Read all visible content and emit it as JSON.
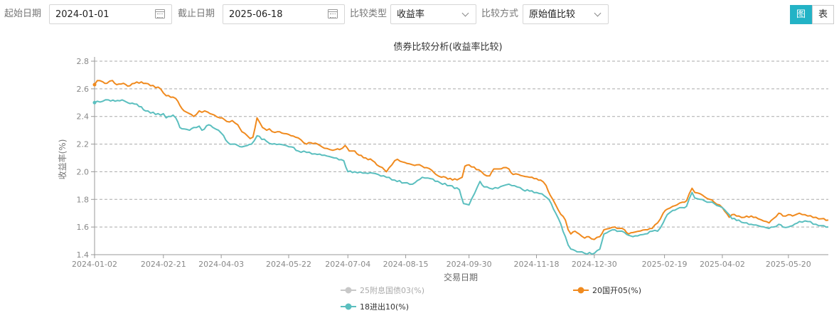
{
  "filters": {
    "start_label": "起始日期",
    "start_value": "2024-01-01",
    "end_label": "截止日期",
    "end_value": "2025-06-18",
    "type_label": "比较类型",
    "type_value": "收益率",
    "mode_label": "比较方式",
    "mode_value": "原始值比较"
  },
  "view_toggle": {
    "chart_label": "图",
    "table_label": "表",
    "active": "chart"
  },
  "colors": {
    "accent": "#22b3c6",
    "series_grey": "#c8c8c8",
    "series_orange": "#f08a1e",
    "series_teal": "#5bbfbf"
  },
  "chart_data": {
    "type": "line",
    "title": "债券比较分析(收益率比较)",
    "xlabel": "交易日期",
    "ylabel": "收益率(%)",
    "ylim": [
      1.4,
      2.8
    ],
    "yticks": [
      "1.4",
      "1.6",
      "1.8",
      "2.0",
      "2.2",
      "2.4",
      "2.6",
      "2.8"
    ],
    "xticks": [
      "2024-01-02",
      "2024-02-21",
      "2024-04-03",
      "2024-05-22",
      "2024-07-04",
      "2024-08-15",
      "2024-09-30",
      "2024-11-18",
      "2024-12-30",
      "2025-02-19",
      "2025-04-02",
      "2025-05-20"
    ],
    "xrange": [
      "2024-01-02",
      "2025-06-18"
    ],
    "grid": true,
    "legend_position": "bottom",
    "series": [
      {
        "name": "25附息国债03(%)",
        "color": "#c8c8c8",
        "hidden": true,
        "points": []
      },
      {
        "name": "20国开05(%)",
        "color": "#f08a1e",
        "points": [
          [
            "2024-01-02",
            2.63
          ],
          [
            "2024-01-04",
            2.66
          ],
          [
            "2024-01-08",
            2.65
          ],
          [
            "2024-01-11",
            2.64
          ],
          [
            "2024-01-15",
            2.66
          ],
          [
            "2024-01-18",
            2.63
          ],
          [
            "2024-01-23",
            2.64
          ],
          [
            "2024-01-26",
            2.62
          ],
          [
            "2024-01-31",
            2.64
          ],
          [
            "2024-02-05",
            2.65
          ],
          [
            "2024-02-08",
            2.64
          ],
          [
            "2024-02-19",
            2.6
          ],
          [
            "2024-02-21",
            2.57
          ],
          [
            "2024-02-23",
            2.55
          ],
          [
            "2024-02-28",
            2.54
          ],
          [
            "2024-03-01",
            2.53
          ],
          [
            "2024-03-04",
            2.48
          ],
          [
            "2024-03-07",
            2.44
          ],
          [
            "2024-03-11",
            2.42
          ],
          [
            "2024-03-14",
            2.4
          ],
          [
            "2024-03-18",
            2.44
          ],
          [
            "2024-03-20",
            2.43
          ],
          [
            "2024-03-22",
            2.44
          ],
          [
            "2024-03-26",
            2.42
          ],
          [
            "2024-03-29",
            2.41
          ],
          [
            "2024-04-02",
            2.39
          ],
          [
            "2024-04-05",
            2.38
          ],
          [
            "2024-04-09",
            2.36
          ],
          [
            "2024-04-11",
            2.37
          ],
          [
            "2024-04-15",
            2.34
          ],
          [
            "2024-04-18",
            2.29
          ],
          [
            "2024-04-22",
            2.26
          ],
          [
            "2024-04-24",
            2.24
          ],
          [
            "2024-04-26",
            2.25
          ],
          [
            "2024-04-29",
            2.39
          ],
          [
            "2024-05-03",
            2.32
          ],
          [
            "2024-05-06",
            2.3
          ],
          [
            "2024-05-08",
            2.31
          ],
          [
            "2024-05-10",
            2.29
          ],
          [
            "2024-05-14",
            2.29
          ],
          [
            "2024-05-17",
            2.28
          ],
          [
            "2024-05-22",
            2.27
          ],
          [
            "2024-05-27",
            2.25
          ],
          [
            "2024-05-31",
            2.23
          ],
          [
            "2024-06-04",
            2.2
          ],
          [
            "2024-06-07",
            2.21
          ],
          [
            "2024-06-12",
            2.2
          ],
          [
            "2024-06-17",
            2.17
          ],
          [
            "2024-06-21",
            2.16
          ],
          [
            "2024-06-25",
            2.16
          ],
          [
            "2024-06-28",
            2.16
          ],
          [
            "2024-07-02",
            2.19
          ],
          [
            "2024-07-05",
            2.15
          ],
          [
            "2024-07-09",
            2.15
          ],
          [
            "2024-07-12",
            2.12
          ],
          [
            "2024-07-17",
            2.1
          ],
          [
            "2024-07-22",
            2.08
          ],
          [
            "2024-07-25",
            2.05
          ],
          [
            "2024-07-29",
            2.03
          ],
          [
            "2024-08-01",
            2.0
          ],
          [
            "2024-08-05",
            2.05
          ],
          [
            "2024-08-07",
            2.08
          ],
          [
            "2024-08-09",
            2.09
          ],
          [
            "2024-08-13",
            2.07
          ],
          [
            "2024-08-16",
            2.06
          ],
          [
            "2024-08-20",
            2.05
          ],
          [
            "2024-08-23",
            2.05
          ],
          [
            "2024-08-27",
            2.04
          ],
          [
            "2024-08-30",
            2.03
          ],
          [
            "2024-09-03",
            2.01
          ],
          [
            "2024-09-06",
            1.98
          ],
          [
            "2024-09-10",
            1.96
          ],
          [
            "2024-09-13",
            1.96
          ],
          [
            "2024-09-18",
            1.94
          ],
          [
            "2024-09-23",
            1.95
          ],
          [
            "2024-09-25",
            1.96
          ],
          [
            "2024-09-27",
            2.04
          ],
          [
            "2024-09-30",
            2.05
          ],
          [
            "2024-10-09",
            2.0
          ],
          [
            "2024-10-11",
            1.98
          ],
          [
            "2024-10-15",
            1.97
          ],
          [
            "2024-10-18",
            2.02
          ],
          [
            "2024-10-22",
            2.02
          ],
          [
            "2024-10-25",
            2.03
          ],
          [
            "2024-10-29",
            2.02
          ],
          [
            "2024-11-01",
            1.98
          ],
          [
            "2024-11-05",
            1.98
          ],
          [
            "2024-11-08",
            1.97
          ],
          [
            "2024-11-13",
            1.96
          ],
          [
            "2024-11-18",
            1.95
          ],
          [
            "2024-11-21",
            1.94
          ],
          [
            "2024-11-25",
            1.9
          ],
          [
            "2024-11-28",
            1.83
          ],
          [
            "2024-12-02",
            1.76
          ],
          [
            "2024-12-04",
            1.72
          ],
          [
            "2024-12-09",
            1.65
          ],
          [
            "2024-12-11",
            1.58
          ],
          [
            "2024-12-13",
            1.55
          ],
          [
            "2024-12-16",
            1.57
          ],
          [
            "2024-12-19",
            1.55
          ],
          [
            "2024-12-23",
            1.52
          ],
          [
            "2024-12-26",
            1.53
          ],
          [
            "2024-12-30",
            1.51
          ],
          [
            "2025-01-03",
            1.53
          ],
          [
            "2025-01-06",
            1.58
          ],
          [
            "2025-01-10",
            1.59
          ],
          [
            "2025-01-14",
            1.6
          ],
          [
            "2025-01-17",
            1.59
          ],
          [
            "2025-01-21",
            1.58
          ],
          [
            "2025-01-24",
            1.55
          ],
          [
            "2025-01-27",
            1.56
          ],
          [
            "2025-02-05",
            1.58
          ],
          [
            "2025-02-10",
            1.59
          ],
          [
            "2025-02-14",
            1.63
          ],
          [
            "2025-02-18",
            1.7
          ],
          [
            "2025-02-21",
            1.73
          ],
          [
            "2025-02-25",
            1.75
          ],
          [
            "2025-02-28",
            1.76
          ],
          [
            "2025-03-04",
            1.78
          ],
          [
            "2025-03-07",
            1.79
          ],
          [
            "2025-03-11",
            1.88
          ],
          [
            "2025-03-13",
            1.85
          ],
          [
            "2025-03-17",
            1.84
          ],
          [
            "2025-03-20",
            1.82
          ],
          [
            "2025-03-24",
            1.8
          ],
          [
            "2025-03-27",
            1.78
          ],
          [
            "2025-03-31",
            1.76
          ],
          [
            "2025-04-02",
            1.74
          ],
          [
            "2025-04-07",
            1.67
          ],
          [
            "2025-04-09",
            1.69
          ],
          [
            "2025-04-14",
            1.68
          ],
          [
            "2025-04-18",
            1.67
          ],
          [
            "2025-04-23",
            1.68
          ],
          [
            "2025-04-28",
            1.66
          ],
          [
            "2025-05-06",
            1.63
          ],
          [
            "2025-05-09",
            1.66
          ],
          [
            "2025-05-13",
            1.7
          ],
          [
            "2025-05-16",
            1.68
          ],
          [
            "2025-05-20",
            1.69
          ],
          [
            "2025-05-23",
            1.68
          ],
          [
            "2025-05-28",
            1.7
          ],
          [
            "2025-06-03",
            1.68
          ],
          [
            "2025-06-09",
            1.67
          ],
          [
            "2025-06-13",
            1.66
          ],
          [
            "2025-06-18",
            1.65
          ]
        ]
      },
      {
        "name": "18进出10(%)",
        "color": "#5bbfbf",
        "points": [
          [
            "2024-01-02",
            2.5
          ],
          [
            "2024-01-04",
            2.51
          ],
          [
            "2024-01-08",
            2.51
          ],
          [
            "2024-01-12",
            2.52
          ],
          [
            "2024-01-17",
            2.51
          ],
          [
            "2024-01-22",
            2.52
          ],
          [
            "2024-01-26",
            2.5
          ],
          [
            "2024-01-31",
            2.49
          ],
          [
            "2024-02-05",
            2.47
          ],
          [
            "2024-02-08",
            2.44
          ],
          [
            "2024-02-19",
            2.41
          ],
          [
            "2024-02-21",
            2.42
          ],
          [
            "2024-02-23",
            2.39
          ],
          [
            "2024-02-28",
            2.41
          ],
          [
            "2024-03-01",
            2.39
          ],
          [
            "2024-03-04",
            2.32
          ],
          [
            "2024-03-07",
            2.31
          ],
          [
            "2024-03-11",
            2.3
          ],
          [
            "2024-03-14",
            2.32
          ],
          [
            "2024-03-18",
            2.33
          ],
          [
            "2024-03-20",
            2.3
          ],
          [
            "2024-03-25",
            2.34
          ],
          [
            "2024-03-28",
            2.32
          ],
          [
            "2024-04-01",
            2.3
          ],
          [
            "2024-04-03",
            2.28
          ],
          [
            "2024-04-08",
            2.21
          ],
          [
            "2024-04-11",
            2.2
          ],
          [
            "2024-04-15",
            2.19
          ],
          [
            "2024-04-18",
            2.18
          ],
          [
            "2024-04-22",
            2.19
          ],
          [
            "2024-04-25",
            2.2
          ],
          [
            "2024-04-29",
            2.26
          ],
          [
            "2024-05-06",
            2.22
          ],
          [
            "2024-05-10",
            2.2
          ],
          [
            "2024-05-15",
            2.2
          ],
          [
            "2024-05-20",
            2.19
          ],
          [
            "2024-05-24",
            2.18
          ],
          [
            "2024-05-29",
            2.15
          ],
          [
            "2024-06-04",
            2.14
          ],
          [
            "2024-06-10",
            2.13
          ],
          [
            "2024-06-17",
            2.12
          ],
          [
            "2024-06-24",
            2.1
          ],
          [
            "2024-07-01",
            2.08
          ],
          [
            "2024-07-04",
            2.0
          ],
          [
            "2024-07-09",
            2.0
          ],
          [
            "2024-07-15",
            1.99
          ],
          [
            "2024-07-22",
            1.99
          ],
          [
            "2024-07-26",
            1.98
          ],
          [
            "2024-08-01",
            1.96
          ],
          [
            "2024-08-07",
            1.94
          ],
          [
            "2024-08-14",
            1.92
          ],
          [
            "2024-08-20",
            1.91
          ],
          [
            "2024-08-27",
            1.96
          ],
          [
            "2024-09-02",
            1.95
          ],
          [
            "2024-09-09",
            1.92
          ],
          [
            "2024-09-16",
            1.9
          ],
          [
            "2024-09-23",
            1.87
          ],
          [
            "2024-09-26",
            1.77
          ],
          [
            "2024-09-30",
            1.76
          ],
          [
            "2024-10-08",
            1.93
          ],
          [
            "2024-10-11",
            1.89
          ],
          [
            "2024-10-15",
            1.88
          ],
          [
            "2024-10-21",
            1.88
          ],
          [
            "2024-10-25",
            1.9
          ],
          [
            "2024-10-29",
            1.91
          ],
          [
            "2024-11-04",
            1.89
          ],
          [
            "2024-11-08",
            1.87
          ],
          [
            "2024-11-13",
            1.86
          ],
          [
            "2024-11-18",
            1.85
          ],
          [
            "2024-11-22",
            1.84
          ],
          [
            "2024-11-27",
            1.8
          ],
          [
            "2024-12-02",
            1.7
          ],
          [
            "2024-12-04",
            1.66
          ],
          [
            "2024-12-09",
            1.53
          ],
          [
            "2024-12-11",
            1.47
          ],
          [
            "2024-12-13",
            1.44
          ],
          [
            "2024-12-16",
            1.43
          ],
          [
            "2024-12-19",
            1.42
          ],
          [
            "2024-12-23",
            1.41
          ],
          [
            "2024-12-30",
            1.41
          ],
          [
            "2025-01-03",
            1.44
          ],
          [
            "2025-01-06",
            1.55
          ],
          [
            "2025-01-10",
            1.57
          ],
          [
            "2025-01-14",
            1.58
          ],
          [
            "2025-01-17",
            1.57
          ],
          [
            "2025-01-21",
            1.56
          ],
          [
            "2025-01-24",
            1.54
          ],
          [
            "2025-01-27",
            1.53
          ],
          [
            "2025-02-05",
            1.55
          ],
          [
            "2025-02-10",
            1.57
          ],
          [
            "2025-02-14",
            1.57
          ],
          [
            "2025-02-18",
            1.63
          ],
          [
            "2025-02-21",
            1.69
          ],
          [
            "2025-02-25",
            1.72
          ],
          [
            "2025-02-28",
            1.73
          ],
          [
            "2025-03-04",
            1.74
          ],
          [
            "2025-03-07",
            1.75
          ],
          [
            "2025-03-11",
            1.85
          ],
          [
            "2025-03-13",
            1.81
          ],
          [
            "2025-03-17",
            1.8
          ],
          [
            "2025-03-20",
            1.79
          ],
          [
            "2025-03-24",
            1.78
          ],
          [
            "2025-03-27",
            1.77
          ],
          [
            "2025-03-31",
            1.75
          ],
          [
            "2025-04-02",
            1.74
          ],
          [
            "2025-04-07",
            1.69
          ],
          [
            "2025-04-09",
            1.66
          ],
          [
            "2025-04-14",
            1.65
          ],
          [
            "2025-04-18",
            1.63
          ],
          [
            "2025-04-23",
            1.62
          ],
          [
            "2025-04-28",
            1.61
          ],
          [
            "2025-05-06",
            1.59
          ],
          [
            "2025-05-09",
            1.6
          ],
          [
            "2025-05-13",
            1.62
          ],
          [
            "2025-05-16",
            1.6
          ],
          [
            "2025-05-20",
            1.6
          ],
          [
            "2025-05-23",
            1.61
          ],
          [
            "2025-05-28",
            1.64
          ],
          [
            "2025-06-03",
            1.64
          ],
          [
            "2025-06-09",
            1.62
          ],
          [
            "2025-06-13",
            1.61
          ],
          [
            "2025-06-18",
            1.6
          ]
        ]
      }
    ]
  }
}
